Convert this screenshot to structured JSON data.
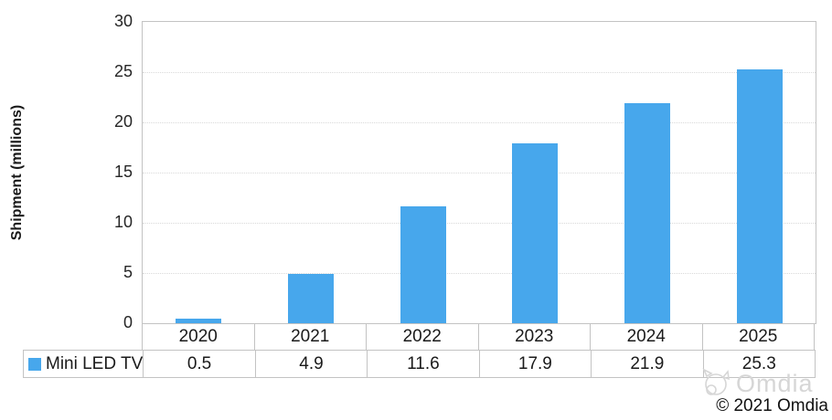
{
  "chart_data": {
    "type": "bar",
    "categories": [
      "2020",
      "2021",
      "2022",
      "2023",
      "2024",
      "2025"
    ],
    "series": [
      {
        "name": "Mini LED TV",
        "values": [
          0.5,
          4.9,
          11.6,
          17.9,
          21.9,
          25.3
        ]
      }
    ],
    "title": "",
    "xlabel": "",
    "ylabel": "Shipment (millions)",
    "ylim": [
      0,
      30
    ],
    "yticks": [
      0,
      5,
      10,
      15,
      20,
      25,
      30
    ],
    "grid": true,
    "gridline_color": "#d9d9d9",
    "bar_color": "#47a7ec",
    "legend_position": "data-table-left",
    "data_table": true
  },
  "watermark": {
    "logo_icon": "omdia-cat-logo",
    "text": "Omdia"
  },
  "footer": {
    "copyright": "© 2021 Omdia"
  }
}
